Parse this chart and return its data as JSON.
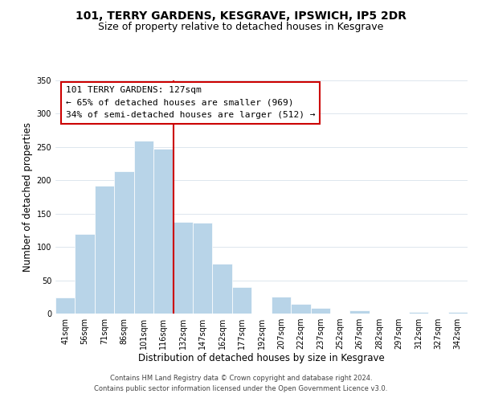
{
  "title": "101, TERRY GARDENS, KESGRAVE, IPSWICH, IP5 2DR",
  "subtitle": "Size of property relative to detached houses in Kesgrave",
  "xlabel": "Distribution of detached houses by size in Kesgrave",
  "ylabel": "Number of detached properties",
  "bar_labels": [
    "41sqm",
    "56sqm",
    "71sqm",
    "86sqm",
    "101sqm",
    "116sqm",
    "132sqm",
    "147sqm",
    "162sqm",
    "177sqm",
    "192sqm",
    "207sqm",
    "222sqm",
    "237sqm",
    "252sqm",
    "267sqm",
    "282sqm",
    "297sqm",
    "312sqm",
    "327sqm",
    "342sqm"
  ],
  "bar_heights": [
    24,
    120,
    192,
    214,
    260,
    248,
    137,
    136,
    75,
    40,
    0,
    25,
    15,
    8,
    0,
    5,
    0,
    0,
    3,
    0,
    2
  ],
  "bar_color": "#b8d4e8",
  "vline_color": "#cc0000",
  "vline_index": 6,
  "annotation_title": "101 TERRY GARDENS: 127sqm",
  "annotation_line1": "← 65% of detached houses are smaller (969)",
  "annotation_line2": "34% of semi-detached houses are larger (512) →",
  "annotation_box_edge": "#cc0000",
  "ylim": [
    0,
    350
  ],
  "yticks": [
    0,
    50,
    100,
    150,
    200,
    250,
    300,
    350
  ],
  "footer1": "Contains HM Land Registry data © Crown copyright and database right 2024.",
  "footer2": "Contains public sector information licensed under the Open Government Licence v3.0.",
  "title_fontsize": 10,
  "subtitle_fontsize": 9,
  "xlabel_fontsize": 8.5,
  "ylabel_fontsize": 8.5,
  "tick_fontsize": 7,
  "annotation_fontsize": 8,
  "footer_fontsize": 6
}
